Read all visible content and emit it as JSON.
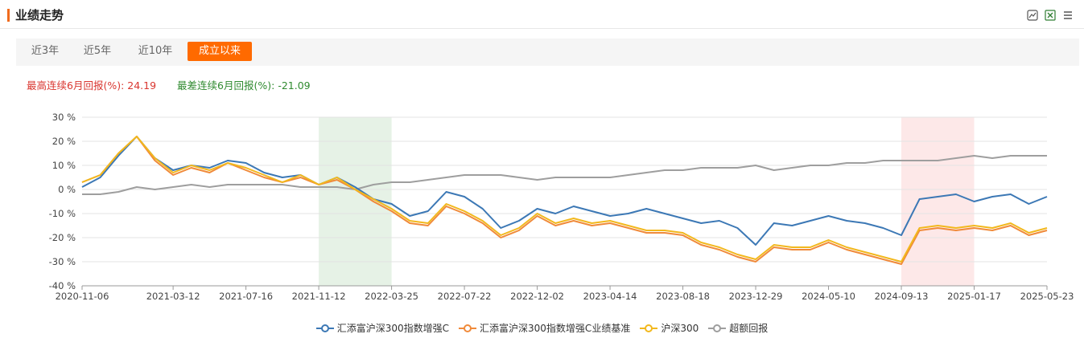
{
  "header": {
    "title": "业绩走势"
  },
  "tools": [
    "chart-image-icon",
    "excel-export-icon",
    "list-menu-icon"
  ],
  "tabs": [
    {
      "label": "近3年",
      "active": false
    },
    {
      "label": "近5年",
      "active": false
    },
    {
      "label": "近10年",
      "active": false
    },
    {
      "label": "成立以来",
      "active": true
    }
  ],
  "stats": {
    "best_label": "最高连续6月回报(%): 24.19",
    "worst_label": "最差连续6月回报(%): -21.09"
  },
  "colors": {
    "accent": "#ff6a00",
    "green_band": "#e6f2e6",
    "red_band": "#fde8e8"
  },
  "chart_data": {
    "type": "line",
    "ylim": [
      -40,
      30
    ],
    "yticks": [
      "30 %",
      "20 %",
      "10 %",
      "0 %",
      "-10 %",
      "-20 %",
      "-30 %",
      "-40 %"
    ],
    "xticks": [
      "2020-11-06",
      "2021-03-12",
      "2021-07-16",
      "2021-11-12",
      "2022-03-25",
      "2022-07-22",
      "2022-12-02",
      "2023-04-14",
      "2023-08-18",
      "2023-12-29",
      "2024-05-10",
      "2024-09-13",
      "2025-01-17",
      "2025-05-23"
    ],
    "x": [
      "2020-11-06",
      "2020-12-04",
      "2021-01-08",
      "2021-02-05",
      "2021-02-19",
      "2021-03-12",
      "2021-04-09",
      "2021-05-14",
      "2021-06-11",
      "2021-07-16",
      "2021-08-13",
      "2021-09-17",
      "2021-10-15",
      "2021-11-12",
      "2021-12-10",
      "2022-01-14",
      "2022-02-18",
      "2022-03-25",
      "2022-04-22",
      "2022-05-27",
      "2022-06-24",
      "2022-07-22",
      "2022-08-19",
      "2022-09-23",
      "2022-10-28",
      "2022-12-02",
      "2023-01-06",
      "2023-02-10",
      "2023-03-17",
      "2023-04-14",
      "2023-05-19",
      "2023-06-16",
      "2023-07-21",
      "2023-08-18",
      "2023-09-22",
      "2023-10-27",
      "2023-12-01",
      "2023-12-29",
      "2024-02-02",
      "2024-03-08",
      "2024-04-12",
      "2024-05-10",
      "2024-06-14",
      "2024-07-19",
      "2024-08-16",
      "2024-09-13",
      "2024-10-18",
      "2024-11-15",
      "2024-12-20",
      "2025-01-17",
      "2025-02-21",
      "2025-03-21",
      "2025-04-25",
      "2025-05-23"
    ],
    "series": [
      {
        "name": "汇添富沪深300指数增强C",
        "color": "#3c78b5",
        "values": [
          1,
          5,
          14,
          22,
          13,
          8,
          10,
          9,
          12,
          11,
          7,
          5,
          6,
          2,
          5,
          1,
          -4,
          -6,
          -11,
          -9,
          -1,
          -3,
          -8,
          -16,
          -13,
          -8,
          -10,
          -7,
          -9,
          -11,
          -10,
          -8,
          -10,
          -12,
          -14,
          -13,
          -16,
          -23,
          -14,
          -15,
          -13,
          -11,
          -13,
          -14,
          -16,
          -19,
          -4,
          -3,
          -2,
          -5,
          -3,
          -2,
          -6,
          -3
        ]
      },
      {
        "name": "汇添富沪深300指数增强C业绩基准",
        "color": "#f08a3a",
        "values": [
          3,
          6,
          15,
          22,
          12,
          6,
          9,
          7,
          11,
          8,
          5,
          3,
          5,
          2,
          4,
          0,
          -5,
          -9,
          -14,
          -15,
          -7,
          -10,
          -14,
          -20,
          -17,
          -11,
          -15,
          -13,
          -15,
          -14,
          -16,
          -18,
          -18,
          -19,
          -23,
          -25,
          -28,
          -30,
          -24,
          -25,
          -25,
          -22,
          -25,
          -27,
          -29,
          -31,
          -17,
          -16,
          -17,
          -16,
          -17,
          -15,
          -19,
          -17
        ]
      },
      {
        "name": "沪深300",
        "color": "#f2b81d",
        "values": [
          3,
          6,
          15,
          22,
          13,
          7,
          10,
          8,
          11,
          9,
          6,
          3,
          6,
          2,
          5,
          0,
          -4,
          -8,
          -13,
          -14,
          -6,
          -9,
          -13,
          -19,
          -16,
          -10,
          -14,
          -12,
          -14,
          -13,
          -15,
          -17,
          -17,
          -18,
          -22,
          -24,
          -27,
          -29,
          -23,
          -24,
          -24,
          -21,
          -24,
          -26,
          -28,
          -30,
          -16,
          -15,
          -16,
          -15,
          -16,
          -14,
          -18,
          -16
        ]
      },
      {
        "name": "超额回报",
        "color": "#9e9e9e",
        "values": [
          -2,
          -2,
          -1,
          1,
          0,
          1,
          2,
          1,
          2,
          2,
          2,
          2,
          1,
          1,
          1,
          0,
          2,
          3,
          3,
          4,
          5,
          6,
          6,
          6,
          5,
          4,
          5,
          5,
          5,
          5,
          6,
          7,
          8,
          8,
          9,
          9,
          9,
          10,
          8,
          9,
          10,
          10,
          11,
          11,
          12,
          12,
          12,
          12,
          13,
          14,
          13,
          14,
          14,
          14
        ]
      }
    ],
    "bands": [
      {
        "from": "2021-11-12",
        "to": "2022-03-25",
        "color": "#e6f2e6"
      },
      {
        "from": "2024-09-13",
        "to": "2025-01-17",
        "color": "#fde8e8"
      }
    ]
  }
}
